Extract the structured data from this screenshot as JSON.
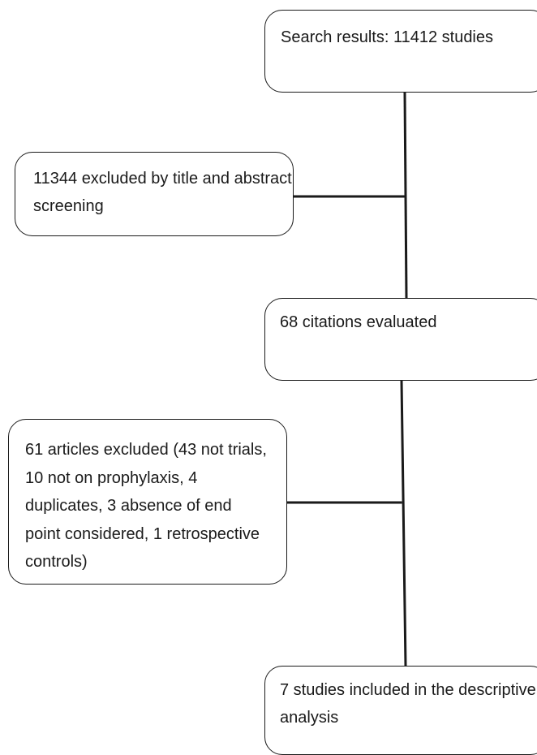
{
  "flowchart": {
    "boxes": {
      "search_results": "Search results: 11412 studies",
      "title_abstract_excluded": "11344 excluded by title and abstract screening",
      "citations_evaluated": "68 citations evaluated",
      "articles_excluded": "61 articles excluded (43 not trials, 10 not on prophylaxis, 4 duplicates, 3 absence of end point considered, 1 retrospective controls)",
      "studies_included": "7 studies included in the descriptive analysis"
    }
  }
}
